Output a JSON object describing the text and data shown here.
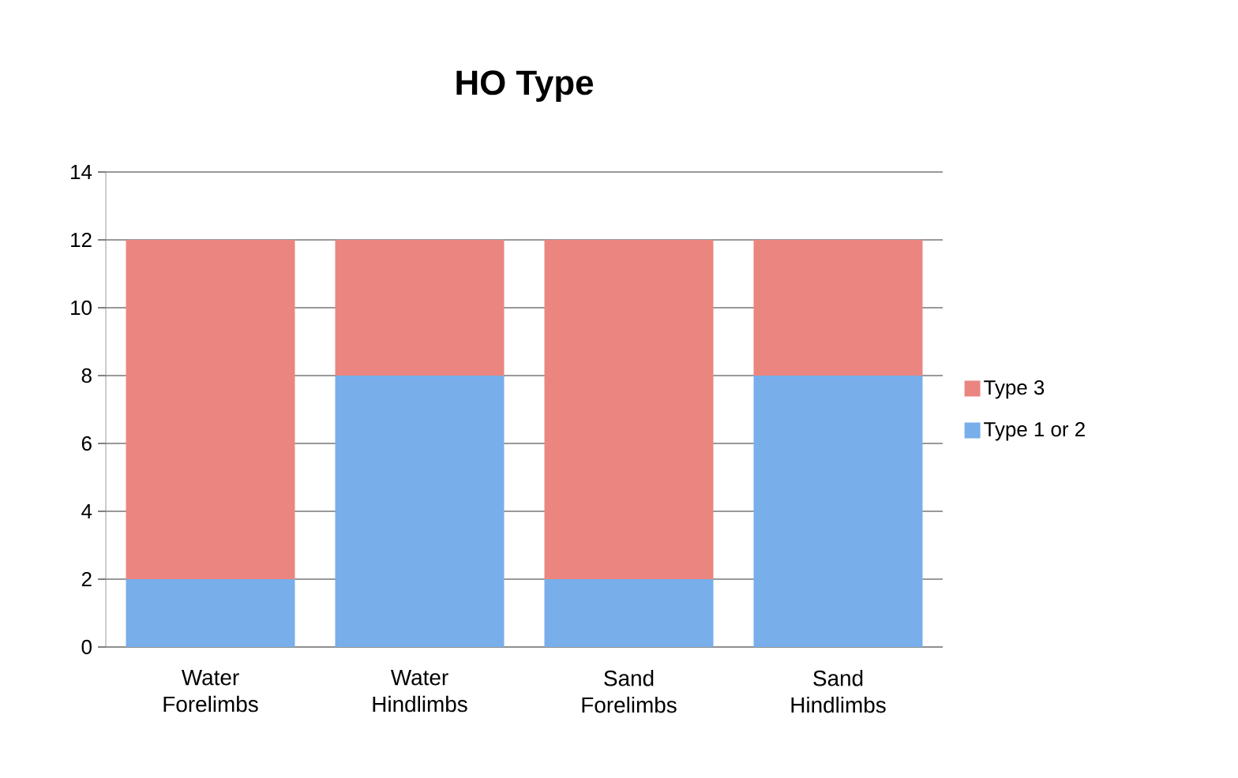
{
  "chart_data": {
    "type": "bar",
    "title": "HO Type",
    "stacked": true,
    "categories": [
      "Water Forelimbs",
      "Water Hindlimbs",
      "Sand Forelimbs",
      "Sand Hindlimbs"
    ],
    "series": [
      {
        "name": "Type 1 or 2",
        "color": "#78aeea",
        "values": [
          2,
          8,
          2,
          8
        ]
      },
      {
        "name": "Type 3",
        "color": "#eb8580",
        "values": [
          10,
          4,
          10,
          4
        ]
      }
    ],
    "ylim": [
      0,
      14
    ],
    "yticks": [
      0,
      2,
      4,
      6,
      8,
      10,
      12,
      14
    ],
    "grid": "y",
    "legend": "right"
  }
}
